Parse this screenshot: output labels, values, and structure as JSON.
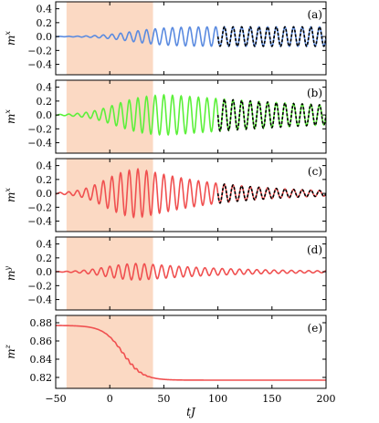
{
  "chart_data": {
    "type": "line",
    "xlabel": "tJ",
    "xlim": [
      -50,
      200
    ],
    "x_ticks": [
      -50,
      0,
      50,
      100,
      150,
      200
    ],
    "shaded_interval": [
      -40,
      40
    ],
    "shade_color": "#fbd9c3",
    "panels": [
      {
        "tag": "(a)",
        "ylabel_base": "m",
        "ylabel_sup": "x",
        "ylim": [
          -0.55,
          0.5
        ],
        "y_ticks": [
          -0.4,
          -0.2,
          0.0,
          0.2,
          0.4
        ],
        "y_tick_labels": [
          "−0.4",
          "−0.2",
          "0.0",
          "0.2",
          "0.4"
        ],
        "series_color": "#5b8be0",
        "signal": {
          "kind": "oscillation",
          "offset": 0.0,
          "period": 8.0,
          "rise_center": 20,
          "rise_width": 16,
          "max_amp": 0.14,
          "decay_after": 200,
          "decay_rate": 0
        },
        "overlay": {
          "style": "dashed",
          "color": "#000000",
          "from_x": 100,
          "to_x": 200
        }
      },
      {
        "tag": "(b)",
        "ylabel_base": "m",
        "ylabel_sup": "x",
        "ylim": [
          -0.55,
          0.5
        ],
        "y_ticks": [
          -0.4,
          -0.2,
          0.0,
          0.2,
          0.4
        ],
        "y_tick_labels": [
          "−0.4",
          "−0.2",
          "0.0",
          "0.2",
          "0.4"
        ],
        "series_color": "#5cf03a",
        "signal": {
          "kind": "oscillation",
          "offset": 0.0,
          "period": 8.0,
          "rise_center": 5,
          "rise_width": 14,
          "max_amp": 0.3,
          "decay_after": 50,
          "decay_rate": 0.005
        },
        "overlay": {
          "style": "dashed",
          "color": "#000000",
          "from_x": 100,
          "to_x": 200
        }
      },
      {
        "tag": "(c)",
        "ylabel_base": "m",
        "ylabel_sup": "x",
        "ylim": [
          -0.55,
          0.5
        ],
        "y_ticks": [
          -0.4,
          -0.2,
          0.0,
          0.2,
          0.4
        ],
        "y_tick_labels": [
          "−0.4",
          "−0.2",
          "0.0",
          "0.2",
          "0.4"
        ],
        "series_color": "#f05050",
        "signal": {
          "kind": "oscillation",
          "offset": 0.0,
          "period": 8.0,
          "rise_center": -5,
          "rise_width": 12,
          "max_amp": 0.38,
          "decay_after": 25,
          "decay_rate": 0.013
        },
        "overlay": {
          "style": "dashed",
          "color": "#000000",
          "from_x": 100,
          "to_x": 200
        }
      },
      {
        "tag": "(d)",
        "ylabel_base": "m",
        "ylabel_sup": "y",
        "ylim": [
          -0.55,
          0.5
        ],
        "y_ticks": [
          -0.4,
          -0.2,
          0.0,
          0.2,
          0.4
        ],
        "y_tick_labels": [
          "−0.4",
          "−0.2",
          "0.0",
          "0.2",
          "0.4"
        ],
        "series_color": "#f05050",
        "signal": {
          "kind": "oscillation",
          "offset": 0.0,
          "period": 8.0,
          "rise_center": -5,
          "rise_width": 12,
          "max_amp": 0.13,
          "decay_after": 25,
          "decay_rate": 0.013,
          "phase": 1.5708
        },
        "overlay": null
      },
      {
        "tag": "(e)",
        "ylabel_base": "m",
        "ylabel_sup": "z",
        "ylim": [
          0.808,
          0.888
        ],
        "y_ticks": [
          0.82,
          0.84,
          0.86,
          0.88
        ],
        "y_tick_labels": [
          "0.82",
          "0.84",
          "0.86",
          "0.88"
        ],
        "series_color": "#f05050",
        "signal": {
          "kind": "sigmoid",
          "start": 0.877,
          "end": 0.817,
          "center": 12,
          "width": 9,
          "ripple_amp": 0.0012,
          "period": 4.0,
          "ripple_window": [
            0,
            45
          ]
        },
        "overlay": null
      }
    ]
  }
}
